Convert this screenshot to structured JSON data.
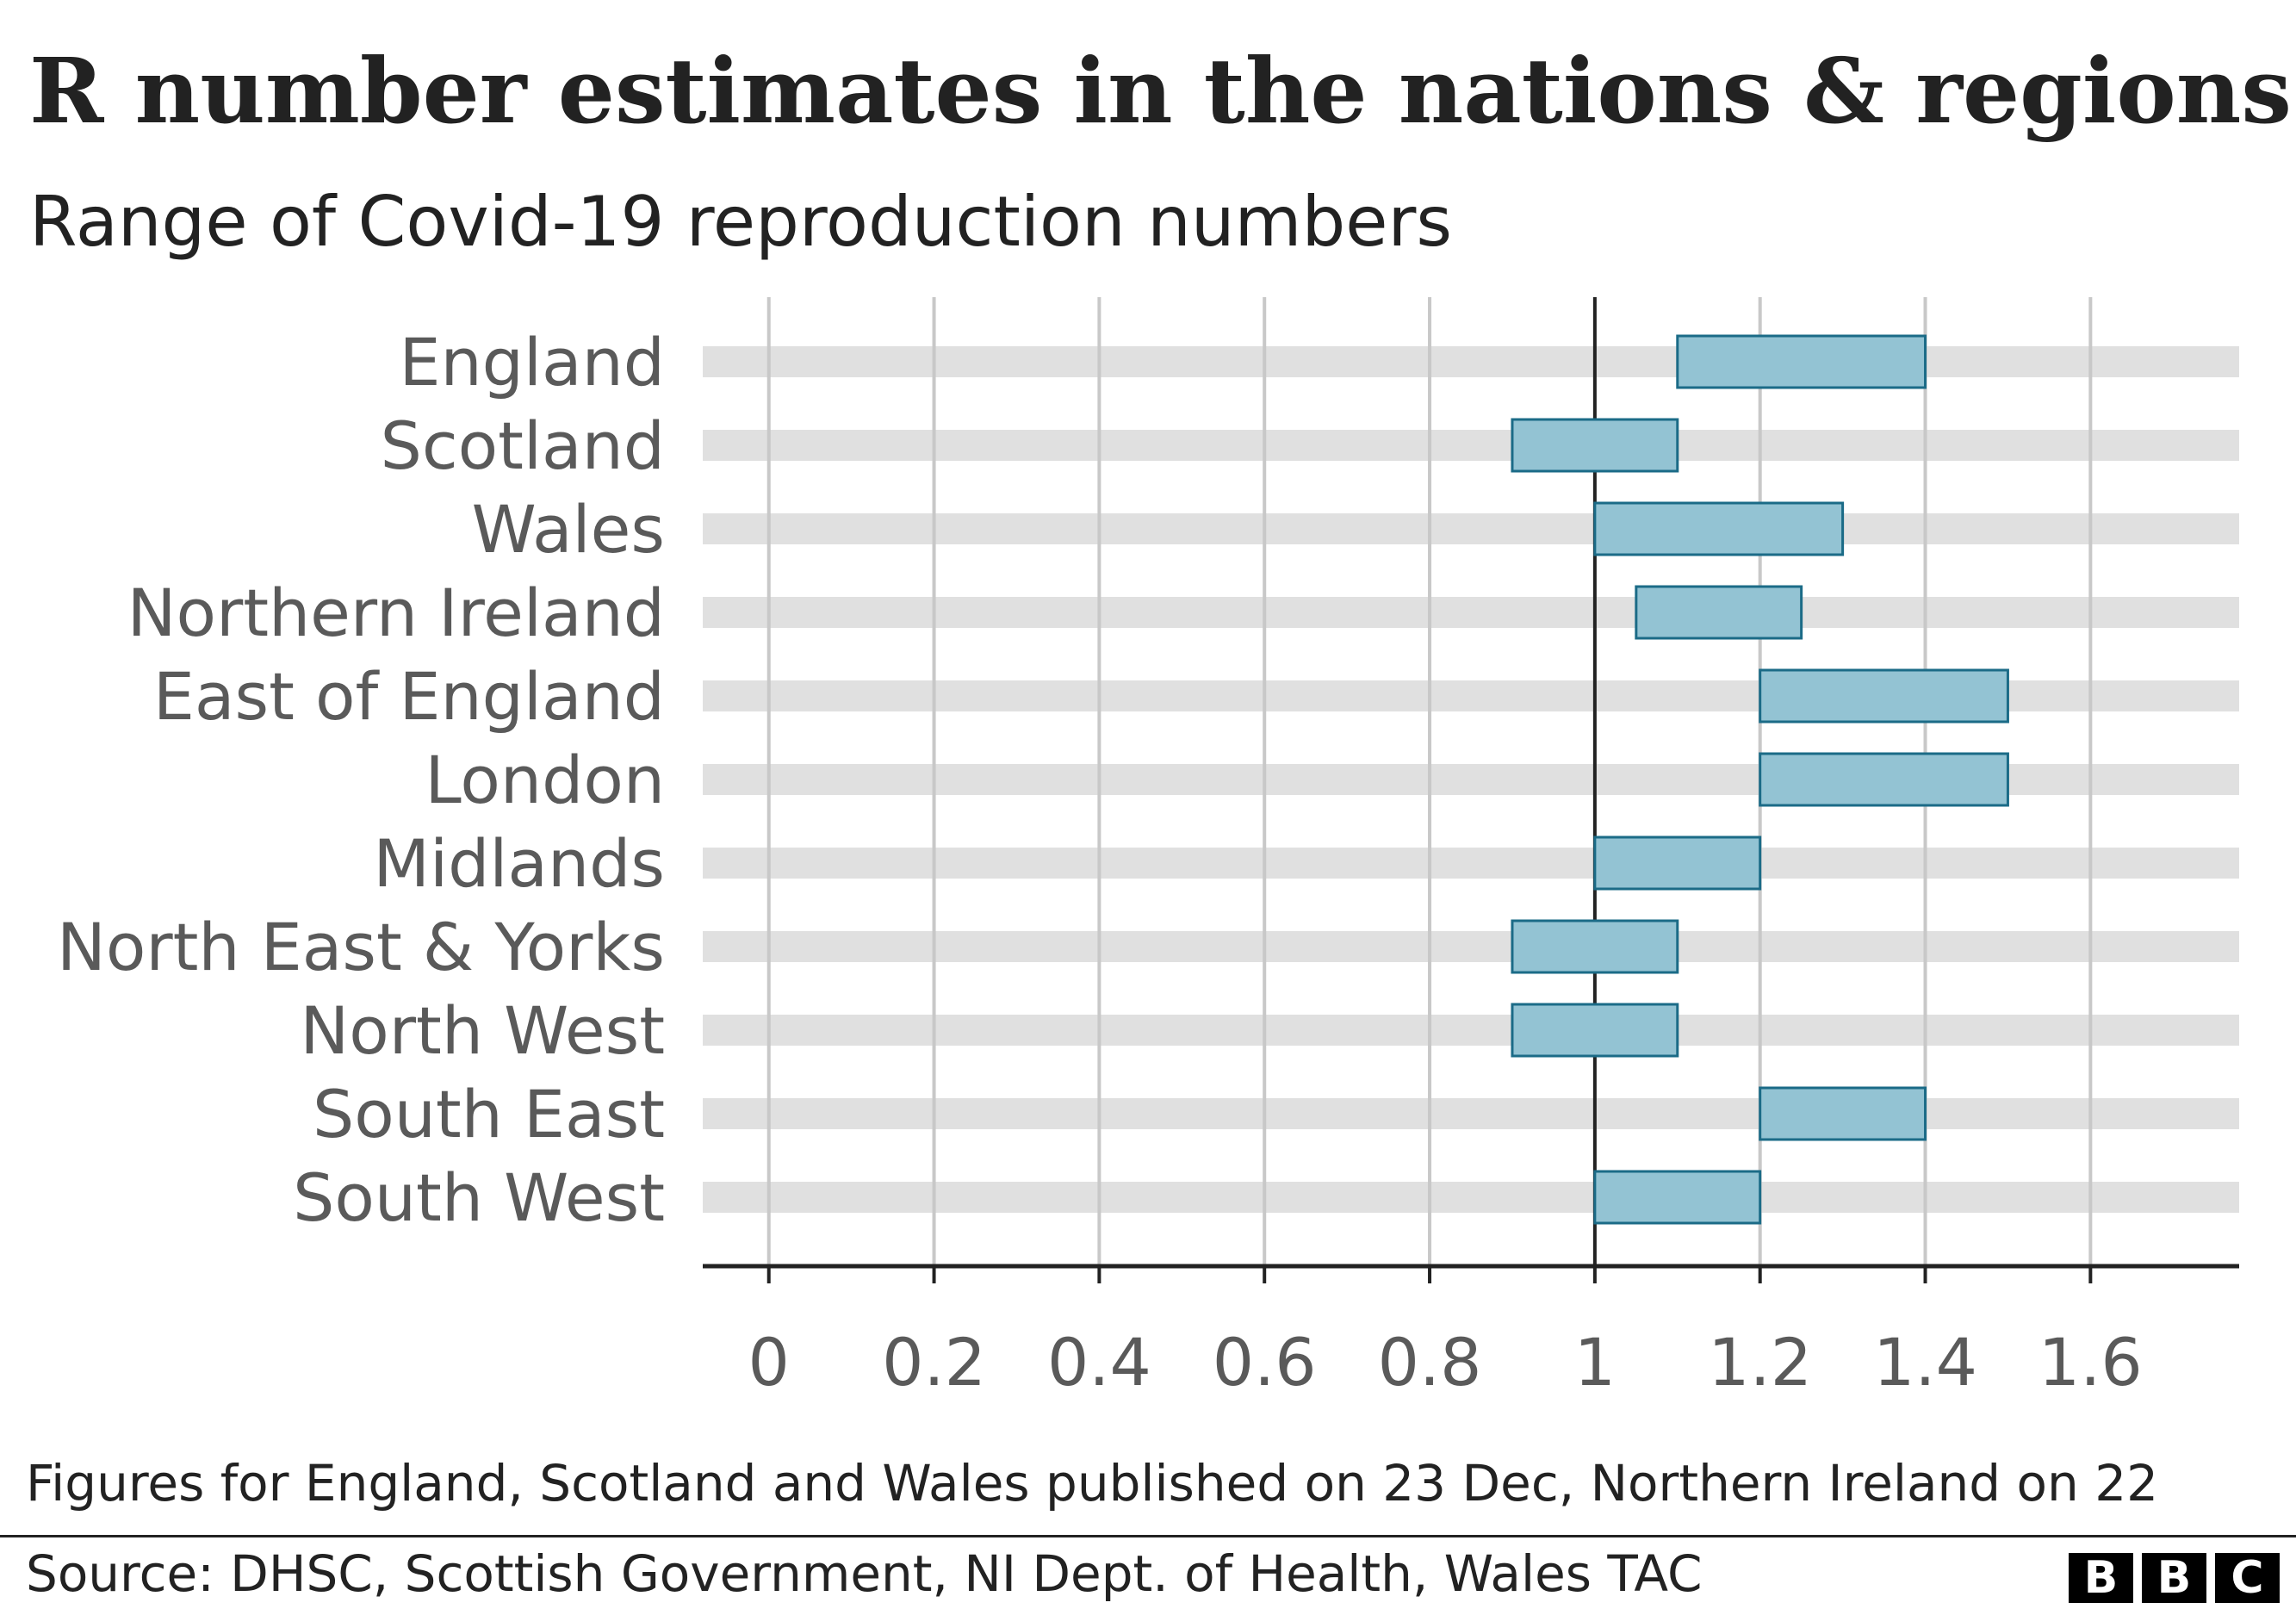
{
  "chart_data": {
    "type": "range-bar",
    "title": "R number estimates in the nations & regions",
    "subtitle": "Range of Covid-19 reproduction numbers",
    "xlim": [
      -0.08,
      1.78
    ],
    "xticks": [
      0,
      0.2,
      0.4,
      0.6,
      0.8,
      1,
      1.2,
      1.4,
      1.6
    ],
    "xtick_labels": [
      "0",
      "0.2",
      "0.4",
      "0.6",
      "0.8",
      "1",
      "1.2",
      "1.4",
      "1.6"
    ],
    "reference_line": 1,
    "grid": true,
    "categories": [
      "England",
      "Scotland",
      "Wales",
      "Northern Ireland",
      "East of England",
      "London",
      "Midlands",
      "North East & Yorks",
      "North West",
      "South East",
      "South West"
    ],
    "ranges": [
      [
        1.1,
        1.4
      ],
      [
        0.9,
        1.1
      ],
      [
        1.0,
        1.3
      ],
      [
        1.05,
        1.25
      ],
      [
        1.2,
        1.5
      ],
      [
        1.2,
        1.5
      ],
      [
        1.0,
        1.2
      ],
      [
        0.9,
        1.1
      ],
      [
        0.9,
        1.1
      ],
      [
        1.2,
        1.4
      ],
      [
        1.0,
        1.2
      ]
    ],
    "colors": {
      "bar_fill": "#93c3d3",
      "bar_stroke": "#1b6b87",
      "row_band": "#e0e0e0",
      "gridline": "#c8c8c8",
      "axis": "#222222",
      "label": "#5a5a5a"
    }
  },
  "footnote": "Figures for England, Scotland and Wales published on 23 Dec, Northern Ireland on 22",
  "source": "Source: DHSC, Scottish Government, NI Dept. of Health, Wales TAC",
  "logo": {
    "letters": [
      "B",
      "B",
      "C"
    ]
  }
}
